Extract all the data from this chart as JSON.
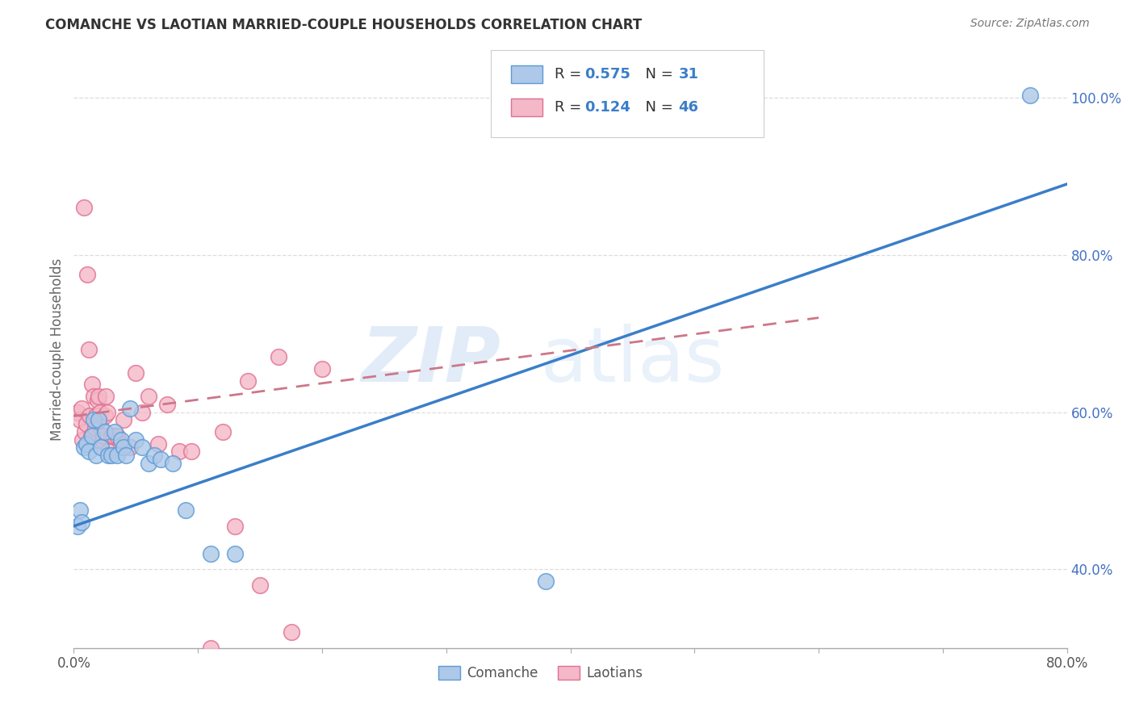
{
  "title": "COMANCHE VS LAOTIAN MARRIED-COUPLE HOUSEHOLDS CORRELATION CHART",
  "source": "Source: ZipAtlas.com",
  "ylabel": "Married-couple Households",
  "xlim": [
    0.0,
    0.8
  ],
  "ylim": [
    0.3,
    1.06
  ],
  "xtick_positions": [
    0.0,
    0.1,
    0.2,
    0.3,
    0.4,
    0.5,
    0.6,
    0.7,
    0.8
  ],
  "ytick_positions": [
    0.4,
    0.6,
    0.8,
    1.0
  ],
  "ytick_labels": [
    "40.0%",
    "60.0%",
    "80.0%",
    "100.0%"
  ],
  "comanche_R": 0.575,
  "comanche_N": 31,
  "laotian_R": 0.124,
  "laotian_N": 46,
  "comanche_color": "#adc8e8",
  "comanche_edge": "#5b9bd5",
  "laotian_color": "#f4b8c8",
  "laotian_edge": "#e07090",
  "comanche_x": [
    0.003,
    0.005,
    0.006,
    0.008,
    0.01,
    0.012,
    0.015,
    0.016,
    0.018,
    0.02,
    0.022,
    0.025,
    0.028,
    0.03,
    0.033,
    0.035,
    0.038,
    0.04,
    0.042,
    0.045,
    0.05,
    0.055,
    0.06,
    0.065,
    0.07,
    0.08,
    0.09,
    0.11,
    0.13,
    0.38,
    0.77
  ],
  "comanche_y": [
    0.455,
    0.475,
    0.46,
    0.555,
    0.56,
    0.55,
    0.57,
    0.59,
    0.545,
    0.59,
    0.555,
    0.575,
    0.545,
    0.545,
    0.575,
    0.545,
    0.565,
    0.555,
    0.545,
    0.605,
    0.565,
    0.555,
    0.535,
    0.545,
    0.54,
    0.535,
    0.475,
    0.42,
    0.42,
    0.385,
    1.003
  ],
  "laotian_x": [
    0.003,
    0.005,
    0.006,
    0.007,
    0.008,
    0.009,
    0.01,
    0.011,
    0.012,
    0.013,
    0.014,
    0.015,
    0.016,
    0.017,
    0.018,
    0.019,
    0.02,
    0.021,
    0.022,
    0.023,
    0.024,
    0.025,
    0.026,
    0.027,
    0.028,
    0.03,
    0.032,
    0.035,
    0.038,
    0.04,
    0.045,
    0.05,
    0.055,
    0.06,
    0.068,
    0.075,
    0.085,
    0.095,
    0.11,
    0.13,
    0.15,
    0.175,
    0.2,
    0.14,
    0.12,
    0.165
  ],
  "laotian_y": [
    0.6,
    0.59,
    0.605,
    0.565,
    0.86,
    0.575,
    0.585,
    0.775,
    0.68,
    0.595,
    0.57,
    0.635,
    0.62,
    0.58,
    0.595,
    0.615,
    0.62,
    0.6,
    0.58,
    0.565,
    0.57,
    0.595,
    0.62,
    0.6,
    0.55,
    0.57,
    0.57,
    0.57,
    0.56,
    0.59,
    0.555,
    0.65,
    0.6,
    0.62,
    0.56,
    0.61,
    0.55,
    0.55,
    0.3,
    0.455,
    0.38,
    0.32,
    0.655,
    0.64,
    0.575,
    0.67
  ],
  "trend_blue_x0": 0.0,
  "trend_blue_y0": 0.455,
  "trend_blue_x1": 0.8,
  "trend_blue_y1": 0.89,
  "trend_pink_x0": 0.0,
  "trend_pink_y0": 0.595,
  "trend_pink_x1": 0.6,
  "trend_pink_y1": 0.72,
  "watermark_zip": "ZIP",
  "watermark_atlas": "atlas",
  "legend_labels": [
    "Comanche",
    "Laotians"
  ],
  "background_color": "#ffffff",
  "grid_color": "#dddddd",
  "grid_style": "--",
  "title_fontsize": 12,
  "axis_fontsize": 12,
  "tick_fontsize": 12,
  "right_tick_color": "#4472c4",
  "ylabel_color": "#666666"
}
